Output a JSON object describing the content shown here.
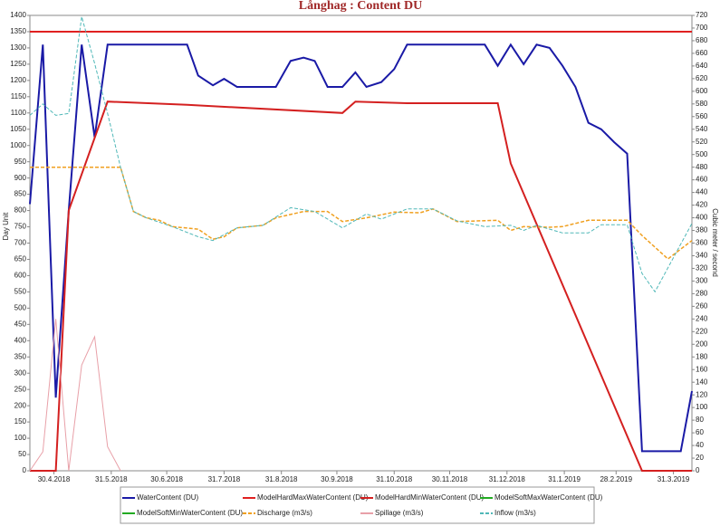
{
  "chart_data": {
    "type": "line",
    "title": "Långhag : Content DU",
    "ylabel": "Day Unit",
    "y2label": "Cubic meter / second",
    "xlim": [
      "17.4.2018",
      "10.4.2019"
    ],
    "xticks": [
      "30.4.2018",
      "31.5.2018",
      "30.6.2018",
      "31.7.2018",
      "31.8.2018",
      "30.9.2018",
      "31.10.2018",
      "30.11.2018",
      "31.12.2018",
      "31.1.2019",
      "28.2.2019",
      "31.3.2019"
    ],
    "ylim": [
      0,
      1400
    ],
    "yticks": [
      0,
      50,
      100,
      150,
      200,
      250,
      300,
      350,
      400,
      450,
      500,
      550,
      600,
      650,
      700,
      750,
      800,
      850,
      900,
      950,
      1000,
      1050,
      1100,
      1150,
      1200,
      1250,
      1300,
      1350,
      1400
    ],
    "y2lim": [
      0,
      720
    ],
    "y2ticks": [
      0,
      20,
      40,
      60,
      80,
      100,
      120,
      140,
      160,
      180,
      200,
      220,
      240,
      260,
      280,
      300,
      320,
      340,
      360,
      380,
      400,
      420,
      440,
      460,
      480,
      500,
      520,
      540,
      560,
      580,
      600,
      620,
      640,
      660,
      680,
      700,
      720
    ],
    "series": [
      {
        "name": "WaterContent (DU)",
        "color": "#1a1aa6",
        "width": 2,
        "x": [
          "17.4.2018",
          "24.4.2018",
          "1.5.2018",
          "8.5.2018",
          "15.5.2018",
          "22.5.2018",
          "29.5.2018",
          "11.7.2018",
          "17.7.2018",
          "25.7.2018",
          "31.7.2018",
          "7.8.2018",
          "28.8.2018",
          "5.9.2018",
          "12.9.2018",
          "18.9.2018",
          "25.9.2018",
          "3.10.2018",
          "10.10.2018",
          "16.10.2018",
          "24.10.2018",
          "31.10.2018",
          "7.11.2018",
          "19.12.2018",
          "26.12.2018",
          "2.1.2019",
          "9.1.2019",
          "16.1.2019",
          "23.1.2019",
          "30.1.2019",
          "6.2.2019",
          "13.2.2019",
          "20.2.2019",
          "27.2.2019",
          "6.3.2019",
          "14.3.2019",
          "4.4.2019",
          "10.4.2019"
        ],
        "values": [
          820,
          1310,
          225,
          800,
          1310,
          1025,
          1310,
          1310,
          1215,
          1185,
          1205,
          1180,
          1180,
          1260,
          1270,
          1260,
          1180,
          1180,
          1225,
          1180,
          1195,
          1235,
          1310,
          1310,
          1245,
          1310,
          1250,
          1310,
          1300,
          1245,
          1180,
          1070,
          1050,
          1010,
          975,
          60,
          60,
          245
        ]
      },
      {
        "name": "ModelHardMaxWaterContent (DU)",
        "color": "#e02020",
        "width": 2,
        "x": [
          "17.4.2018",
          "10.4.2019"
        ],
        "values": [
          1350,
          1350
        ]
      },
      {
        "name": "ModelHardMinWaterContent (DU)",
        "color": "#d42020",
        "width": 2,
        "x": [
          "17.4.2018",
          "1.5.2018",
          "8.5.2018",
          "29.5.2018",
          "11.7.2018",
          "3.10.2018",
          "10.10.2018",
          "7.11.2018",
          "26.12.2018",
          "2.1.2019",
          "14.3.2019",
          "10.4.2019"
        ],
        "values": [
          0,
          0,
          800,
          1135,
          1125,
          1100,
          1135,
          1130,
          1130,
          945,
          0,
          0
        ]
      },
      {
        "name": "ModelSoftMaxWaterContent (DU)",
        "color": "#22aa22",
        "width": 1.5,
        "x": [],
        "values": []
      },
      {
        "name": "ModelSoftMinWaterContent (DU)",
        "color": "#22aa22",
        "width": 1.5,
        "x": [],
        "values": []
      },
      {
        "name": "Discharge (m3/s)",
        "color": "#f0a020",
        "width": 1.5,
        "dashed": true,
        "axis": "y2",
        "x": [
          "17.4.2018",
          "5.6.2018",
          "12.6.2018",
          "19.6.2018",
          "26.6.2018",
          "3.7.2018",
          "17.7.2018",
          "25.7.2018",
          "31.7.2018",
          "7.8.2018",
          "21.8.2018",
          "28.8.2018",
          "12.9.2018",
          "25.9.2018",
          "3.10.2018",
          "16.10.2018",
          "31.10.2018",
          "14.11.2018",
          "21.11.2018",
          "4.12.2018",
          "26.12.2018",
          "2.1.2019",
          "9.1.2019",
          "23.1.2019",
          "30.1.2019",
          "13.2.2019",
          "6.3.2019",
          "14.3.2019",
          "28.3.2019",
          "10.4.2019"
        ],
        "values": [
          480,
          480,
          410,
          400,
          396,
          386,
          382,
          366,
          370,
          384,
          388,
          400,
          410,
          410,
          394,
          400,
          409,
          408,
          414,
          394,
          396,
          380,
          386,
          385,
          386,
          396,
          396,
          372,
          335,
          364
        ]
      },
      {
        "name": "Spillage (m3/s)",
        "color": "#e8a0a8",
        "width": 1,
        "axis": "y2",
        "x": [
          "17.4.2018",
          "24.4.2018",
          "1.5.2018",
          "8.5.2018",
          "15.5.2018",
          "22.5.2018",
          "29.5.2018",
          "5.6.2018"
        ],
        "values": [
          0,
          30,
          240,
          0,
          167,
          212,
          38,
          0
        ]
      },
      {
        "name": "Inflow (m3/s)",
        "color": "#50b8b8",
        "width": 1,
        "dashed": true,
        "axis": "y2",
        "x": [
          "17.4.2018",
          "24.4.2018",
          "1.5.2018",
          "8.5.2018",
          "15.5.2018",
          "22.5.2018",
          "29.5.2018",
          "5.6.2018",
          "12.6.2018",
          "19.6.2018",
          "3.7.2018",
          "17.7.2018",
          "25.7.2018",
          "7.8.2018",
          "21.8.2018",
          "5.9.2018",
          "18.9.2018",
          "3.10.2018",
          "16.10.2018",
          "24.10.2018",
          "7.11.2018",
          "21.11.2018",
          "4.12.2018",
          "19.12.2018",
          "2.1.2019",
          "9.1.2019",
          "16.1.2019",
          "30.1.2019",
          "13.2.2019",
          "20.2.2019",
          "6.3.2019",
          "14.3.2019",
          "21.3.2019",
          "10.4.2019"
        ],
        "values": [
          562,
          580,
          562,
          565,
          718,
          644,
          565,
          480,
          410,
          400,
          386,
          370,
          364,
          384,
          388,
          416,
          410,
          384,
          406,
          398,
          414,
          414,
          395,
          386,
          388,
          380,
          388,
          376,
          376,
          389,
          389,
          312,
          283,
          391
        ]
      }
    ]
  }
}
